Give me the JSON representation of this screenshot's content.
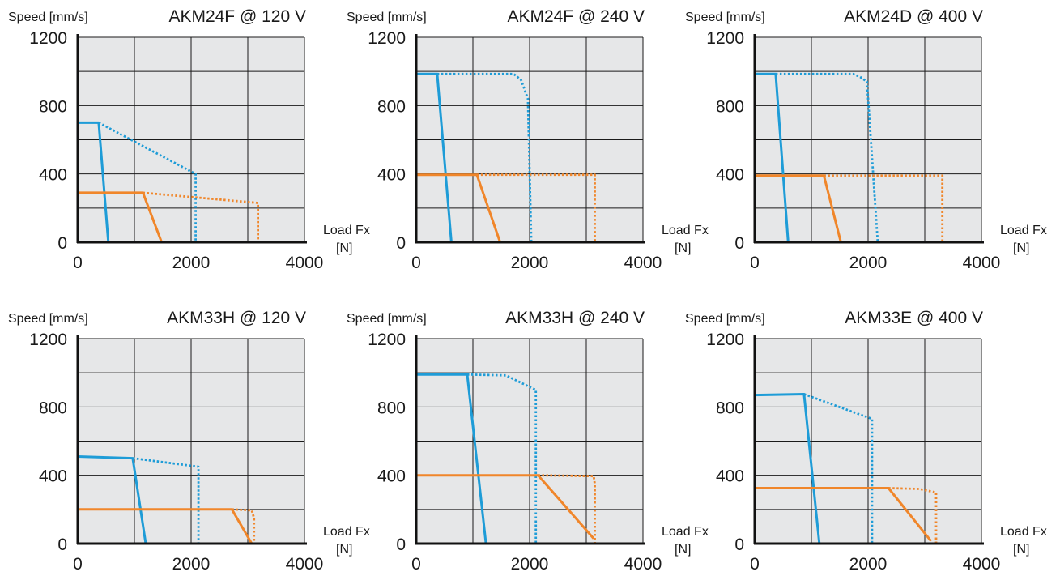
{
  "colors": {
    "plot_bg": "#e6e7e8",
    "grid": "#1a1a1a",
    "axis": "#111111",
    "blue": "#1e9cd7",
    "orange": "#f0862a"
  },
  "chart_data": [
    {
      "type": "line",
      "title": "AKM24F @ 120 V",
      "ylabel": "Speed [mm/s]",
      "xlabel": "Load Fx",
      "xunit": "[N]",
      "xlim": [
        0,
        4000
      ],
      "ylim": [
        0,
        1200
      ],
      "xticks": [
        0,
        2000,
        4000
      ],
      "xtick_labels": [
        "0",
        "2000",
        "4000"
      ],
      "yticks": [
        0,
        400,
        800,
        1200
      ],
      "ytick_labels": [
        "0",
        "400",
        "800",
        "1200"
      ],
      "grid": true,
      "series": [
        {
          "color": "blue",
          "style": "solid",
          "points": [
            [
              0,
              700
            ],
            [
              370,
              700
            ],
            [
              540,
              0
            ]
          ]
        },
        {
          "color": "blue",
          "style": "dotted",
          "points": [
            [
              370,
              700
            ],
            [
              2080,
              400
            ],
            [
              2080,
              0
            ]
          ]
        },
        {
          "color": "orange",
          "style": "solid",
          "points": [
            [
              0,
              290
            ],
            [
              1150,
              290
            ],
            [
              1480,
              0
            ]
          ]
        },
        {
          "color": "orange",
          "style": "dotted",
          "points": [
            [
              1150,
              290
            ],
            [
              3180,
              230
            ],
            [
              3180,
              0
            ]
          ]
        }
      ]
    },
    {
      "type": "line",
      "title": "AKM24F @  240 V",
      "ylabel": "Speed [mm/s]",
      "xlabel": "Load Fx",
      "xunit": "[N]",
      "xlim": [
        0,
        4000
      ],
      "ylim": [
        0,
        1200
      ],
      "xticks": [
        0,
        2000,
        4000
      ],
      "xtick_labels": [
        "0",
        "2000",
        "4000"
      ],
      "yticks": [
        0,
        400,
        800,
        1200
      ],
      "ytick_labels": [
        "0",
        "400",
        "800",
        "1200"
      ],
      "grid": true,
      "series": [
        {
          "color": "blue",
          "style": "solid",
          "points": [
            [
              0,
              985
            ],
            [
              370,
              985
            ],
            [
              620,
              0
            ]
          ]
        },
        {
          "color": "blue",
          "style": "dotted",
          "points": [
            [
              370,
              985
            ],
            [
              1720,
              985
            ],
            [
              1850,
              950
            ],
            [
              1970,
              840
            ],
            [
              2030,
              0
            ]
          ]
        },
        {
          "color": "orange",
          "style": "solid",
          "points": [
            [
              0,
              395
            ],
            [
              1070,
              395
            ],
            [
              1480,
              0
            ]
          ]
        },
        {
          "color": "orange",
          "style": "dotted",
          "points": [
            [
              1070,
              395
            ],
            [
              3150,
              395
            ],
            [
              3150,
              0
            ]
          ]
        }
      ]
    },
    {
      "type": "line",
      "title": "AKM24D @ 400 V",
      "ylabel": "Speed [mm/s]",
      "xlabel": "Load Fx",
      "xunit": "[N]",
      "xlim": [
        0,
        4000
      ],
      "ylim": [
        0,
        1200
      ],
      "xticks": [
        0,
        2000,
        4000
      ],
      "xtick_labels": [
        "0",
        "2000",
        "4000"
      ],
      "yticks": [
        0,
        400,
        800,
        1200
      ],
      "ytick_labels": [
        "0",
        "400",
        "800",
        "1200"
      ],
      "grid": true,
      "series": [
        {
          "color": "blue",
          "style": "solid",
          "points": [
            [
              0,
              985
            ],
            [
              370,
              985
            ],
            [
              590,
              0
            ]
          ]
        },
        {
          "color": "blue",
          "style": "dotted",
          "points": [
            [
              370,
              985
            ],
            [
              1730,
              985
            ],
            [
              1850,
              970
            ],
            [
              1980,
              940
            ],
            [
              2170,
              0
            ]
          ]
        },
        {
          "color": "orange",
          "style": "solid",
          "points": [
            [
              0,
              390
            ],
            [
              1220,
              390
            ],
            [
              1520,
              0
            ]
          ]
        },
        {
          "color": "orange",
          "style": "dotted",
          "points": [
            [
              1220,
              390
            ],
            [
              3310,
              390
            ],
            [
              3310,
              0
            ]
          ]
        }
      ]
    },
    {
      "type": "line",
      "title": "AKM33H @ 120 V",
      "ylabel": "Speed [mm/s]",
      "xlabel": "Load Fx",
      "xunit": "[N]",
      "xlim": [
        0,
        4000
      ],
      "ylim": [
        0,
        1200
      ],
      "xticks": [
        0,
        2000,
        4000
      ],
      "xtick_labels": [
        "0",
        "2000",
        "4000"
      ],
      "yticks": [
        0,
        400,
        800,
        1200
      ],
      "ytick_labels": [
        "0",
        "400",
        "800",
        "1200"
      ],
      "grid": true,
      "series": [
        {
          "color": "blue",
          "style": "solid",
          "points": [
            [
              0,
              510
            ],
            [
              970,
              500
            ],
            [
              1200,
              0
            ]
          ]
        },
        {
          "color": "blue",
          "style": "dotted",
          "points": [
            [
              970,
              500
            ],
            [
              2130,
              450
            ],
            [
              2130,
              0
            ]
          ]
        },
        {
          "color": "orange",
          "style": "solid",
          "points": [
            [
              0,
              200
            ],
            [
              2720,
              200
            ],
            [
              3070,
              0
            ]
          ]
        },
        {
          "color": "orange",
          "style": "dotted",
          "points": [
            [
              2720,
              200
            ],
            [
              3070,
              195
            ],
            [
              3110,
              150
            ],
            [
              3110,
              0
            ]
          ]
        }
      ]
    },
    {
      "type": "line",
      "title": "AKM33H @ 240 V",
      "ylabel": "Speed [mm/s]",
      "xlabel": "Load Fx",
      "xunit": "[N]",
      "xlim": [
        0,
        4000
      ],
      "ylim": [
        0,
        1200
      ],
      "xticks": [
        0,
        2000,
        4000
      ],
      "xtick_labels": [
        "0",
        "2000",
        "4000"
      ],
      "yticks": [
        0,
        400,
        800,
        1200
      ],
      "ytick_labels": [
        "0",
        "400",
        "800",
        "1200"
      ],
      "grid": true,
      "series": [
        {
          "color": "blue",
          "style": "solid",
          "points": [
            [
              0,
              990
            ],
            [
              900,
              990
            ],
            [
              1230,
              0
            ]
          ]
        },
        {
          "color": "blue",
          "style": "dotted",
          "points": [
            [
              900,
              990
            ],
            [
              1580,
              985
            ],
            [
              2110,
              900
            ],
            [
              2110,
              0
            ]
          ]
        },
        {
          "color": "orange",
          "style": "solid",
          "points": [
            [
              0,
              400
            ],
            [
              2150,
              400
            ],
            [
              3130,
              30
            ]
          ]
        },
        {
          "color": "orange",
          "style": "dotted",
          "points": [
            [
              2150,
              400
            ],
            [
              3130,
              395
            ],
            [
              3150,
              350
            ],
            [
              3150,
              0
            ]
          ]
        }
      ]
    },
    {
      "type": "line",
      "title": "AKM33E @ 400 V",
      "ylabel": "Speed [mm/s]",
      "xlabel": "Load Fx",
      "xunit": "[N]",
      "xlim": [
        0,
        4000
      ],
      "ylim": [
        0,
        1200
      ],
      "xticks": [
        0,
        2000,
        4000
      ],
      "xtick_labels": [
        "0",
        "2000",
        "4000"
      ],
      "yticks": [
        0,
        400,
        800,
        1200
      ],
      "ytick_labels": [
        "0",
        "400",
        "800",
        "1200"
      ],
      "grid": true,
      "series": [
        {
          "color": "blue",
          "style": "solid",
          "points": [
            [
              0,
              870
            ],
            [
              870,
              875
            ],
            [
              1140,
              0
            ]
          ]
        },
        {
          "color": "blue",
          "style": "dotted",
          "points": [
            [
              870,
              875
            ],
            [
              2070,
              730
            ],
            [
              2070,
              0
            ]
          ]
        },
        {
          "color": "orange",
          "style": "solid",
          "points": [
            [
              0,
              325
            ],
            [
              2360,
              325
            ],
            [
              3110,
              15
            ]
          ]
        },
        {
          "color": "orange",
          "style": "dotted",
          "points": [
            [
              2360,
              325
            ],
            [
              2900,
              320
            ],
            [
              3200,
              300
            ],
            [
              3200,
              0
            ]
          ]
        }
      ]
    }
  ]
}
